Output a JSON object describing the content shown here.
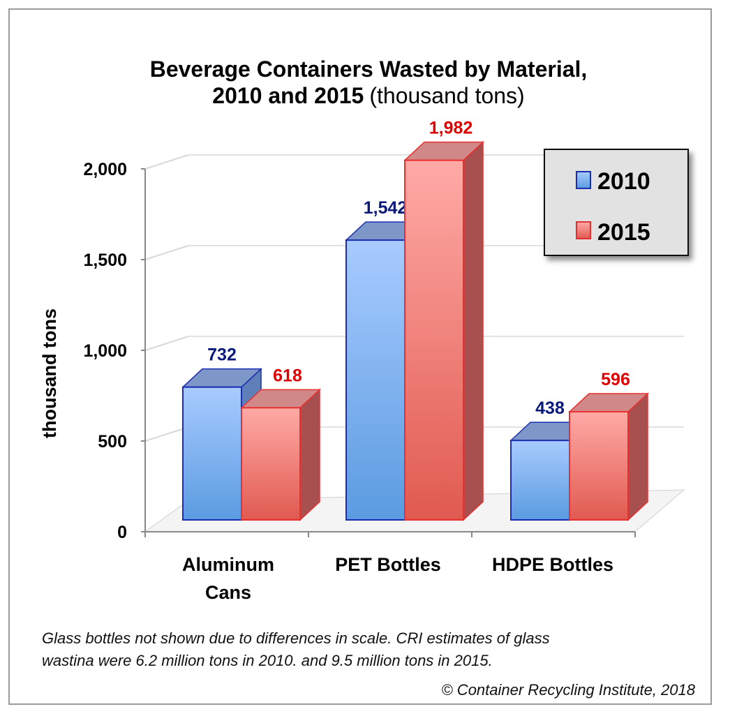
{
  "chart_data": {
    "type": "bar",
    "title_bold_line1": "Beverage Containers Wasted by Material,",
    "title_bold_line2": "2010 and 2015",
    "title_normal_line2": "(thousand tons)",
    "ylabel": "thousand tons",
    "xlabel": "",
    "categories": [
      [
        "Aluminum",
        "Cans"
      ],
      [
        "PET Bottles"
      ],
      [
        "HDPE Bottles"
      ]
    ],
    "series": [
      {
        "name": "2010",
        "values": [
          732,
          1542,
          438
        ],
        "labels": [
          "732",
          "1,542",
          "438"
        ],
        "color": "#7fb0f0",
        "label_color": "#0a1a7a"
      },
      {
        "name": "2015",
        "values": [
          618,
          1982,
          596
        ],
        "labels": [
          "618",
          "1,982",
          "596"
        ],
        "color": "#f08a84",
        "label_color": "#e00000"
      }
    ],
    "yticks": [
      0,
      500,
      1000,
      1500,
      2000
    ],
    "ytick_labels": [
      "0",
      "500",
      "1,000",
      "1,500",
      "2,000"
    ],
    "ylim": [
      0,
      2000
    ],
    "grid": true,
    "style": "3d",
    "legend_placement": "top-right"
  },
  "footnote": {
    "line1": "Glass bottles not shown due to differences in scale. CRI estimates of glass",
    "line2": "wastina were 6.2 million tons in 2010. and 9.5 million  tons in 2015.",
    "credit": "© Container Recycling Institute, 2018"
  }
}
